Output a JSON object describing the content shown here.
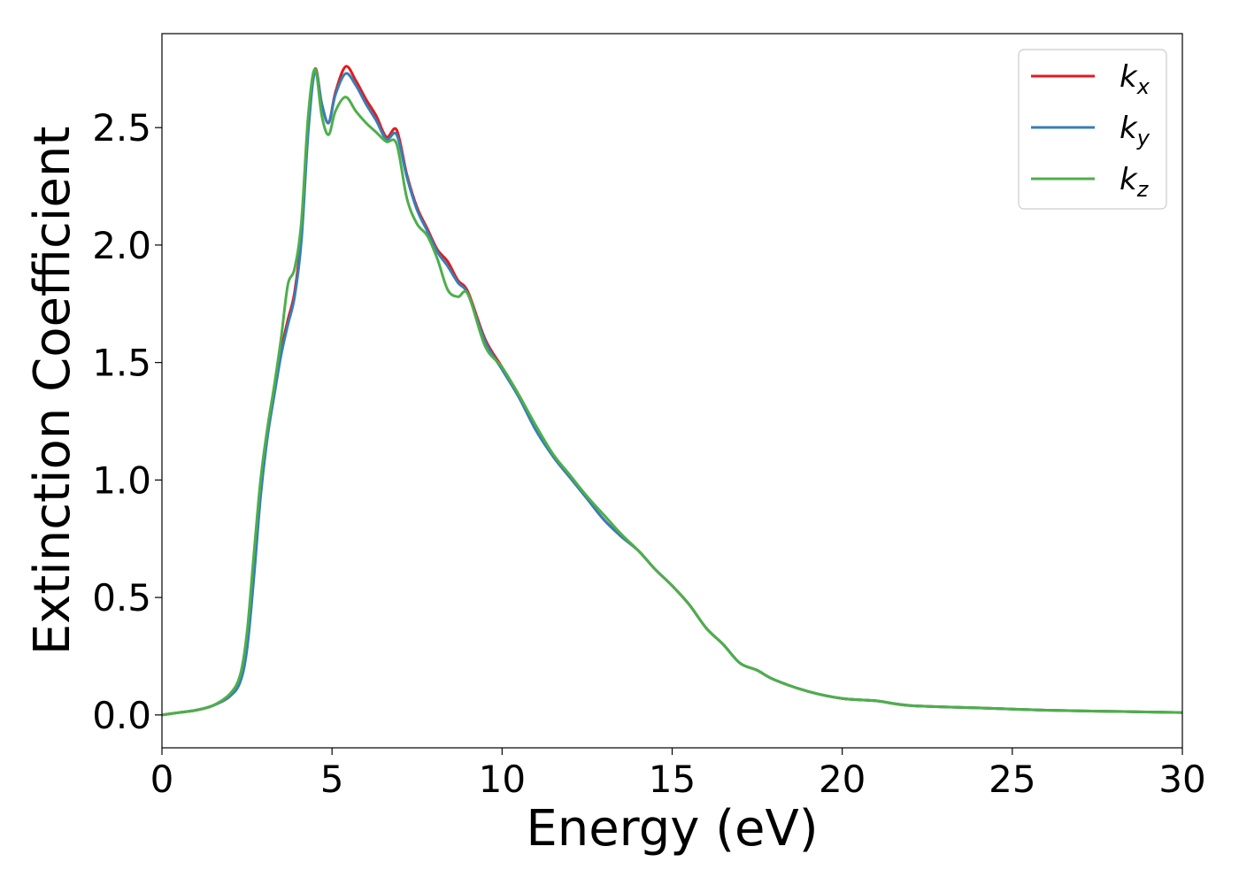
{
  "chart_data": {
    "type": "line",
    "title": "",
    "xlabel": "Energy (eV)",
    "ylabel": "Extinction Coefficient",
    "xlim": [
      0,
      30
    ],
    "ylim": [
      -0.14,
      2.9
    ],
    "xticks": [
      0,
      5,
      10,
      15,
      20,
      25,
      30
    ],
    "xtick_labels": [
      "0",
      "5",
      "10",
      "15",
      "20",
      "25",
      "30"
    ],
    "yticks": [
      0.0,
      0.5,
      1.0,
      1.5,
      2.0,
      2.5
    ],
    "ytick_labels": [
      "0.0",
      "0.5",
      "1.0",
      "1.5",
      "2.0",
      "2.5"
    ],
    "grid": false,
    "legend_position": "top-right",
    "series": [
      {
        "name": "k_x",
        "label_main": "k",
        "label_sub": "x",
        "color": "#e41a1c",
        "x": [
          0,
          0.5,
          1.0,
          1.5,
          2.0,
          2.3,
          2.5,
          2.7,
          2.9,
          3.1,
          3.3,
          3.5,
          3.7,
          3.9,
          4.1,
          4.3,
          4.5,
          4.7,
          4.9,
          5.1,
          5.4,
          5.7,
          6.0,
          6.3,
          6.6,
          6.9,
          7.2,
          7.5,
          7.8,
          8.1,
          8.4,
          8.7,
          9.0,
          9.5,
          10.0,
          10.5,
          11.0,
          11.5,
          12.0,
          12.5,
          13.0,
          13.5,
          14.0,
          14.5,
          15.0,
          15.5,
          16.0,
          16.5,
          17.0,
          17.5,
          18.0,
          19.0,
          20.0,
          21.0,
          22.0,
          24.0,
          26.0,
          28.0,
          30.0
        ],
        "y": [
          0.0,
          0.01,
          0.02,
          0.04,
          0.08,
          0.15,
          0.3,
          0.6,
          0.95,
          1.2,
          1.38,
          1.55,
          1.68,
          1.8,
          2.05,
          2.5,
          2.75,
          2.6,
          2.52,
          2.65,
          2.76,
          2.7,
          2.62,
          2.55,
          2.46,
          2.49,
          2.3,
          2.16,
          2.07,
          1.98,
          1.93,
          1.85,
          1.8,
          1.6,
          1.48,
          1.36,
          1.22,
          1.1,
          1.01,
          0.92,
          0.83,
          0.76,
          0.7,
          0.62,
          0.55,
          0.47,
          0.37,
          0.3,
          0.22,
          0.19,
          0.15,
          0.1,
          0.07,
          0.06,
          0.04,
          0.03,
          0.02,
          0.015,
          0.01
        ]
      },
      {
        "name": "k_y",
        "label_main": "k",
        "label_sub": "y",
        "color": "#377eb8",
        "x": [
          0,
          0.5,
          1.0,
          1.5,
          2.0,
          2.3,
          2.5,
          2.7,
          2.9,
          3.1,
          3.3,
          3.5,
          3.7,
          3.9,
          4.1,
          4.3,
          4.5,
          4.7,
          4.9,
          5.1,
          5.4,
          5.7,
          6.0,
          6.3,
          6.6,
          6.9,
          7.2,
          7.5,
          7.8,
          8.1,
          8.4,
          8.7,
          9.0,
          9.5,
          10.0,
          10.5,
          11.0,
          11.5,
          12.0,
          12.5,
          13.0,
          13.5,
          14.0,
          14.5,
          15.0,
          15.5,
          16.0,
          16.5,
          17.0,
          17.5,
          18.0,
          19.0,
          20.0,
          21.0,
          22.0,
          24.0,
          26.0,
          28.0,
          30.0
        ],
        "y": [
          0.0,
          0.01,
          0.02,
          0.04,
          0.08,
          0.14,
          0.28,
          0.58,
          0.93,
          1.18,
          1.36,
          1.53,
          1.66,
          1.78,
          2.02,
          2.48,
          2.74,
          2.6,
          2.52,
          2.64,
          2.73,
          2.68,
          2.6,
          2.53,
          2.45,
          2.47,
          2.29,
          2.15,
          2.06,
          1.97,
          1.91,
          1.84,
          1.79,
          1.59,
          1.47,
          1.35,
          1.21,
          1.1,
          1.01,
          0.92,
          0.83,
          0.76,
          0.7,
          0.62,
          0.55,
          0.47,
          0.37,
          0.3,
          0.22,
          0.19,
          0.15,
          0.1,
          0.07,
          0.06,
          0.04,
          0.03,
          0.02,
          0.015,
          0.01
        ]
      },
      {
        "name": "k_z",
        "label_main": "k",
        "label_sub": "z",
        "color": "#4daf4a",
        "x": [
          0,
          0.5,
          1.0,
          1.5,
          2.0,
          2.3,
          2.5,
          2.7,
          2.9,
          3.1,
          3.3,
          3.5,
          3.7,
          3.9,
          4.1,
          4.3,
          4.5,
          4.7,
          4.9,
          5.1,
          5.4,
          5.7,
          6.0,
          6.3,
          6.6,
          6.9,
          7.2,
          7.5,
          7.8,
          8.1,
          8.4,
          8.7,
          9.0,
          9.5,
          10.0,
          10.5,
          11.0,
          11.5,
          12.0,
          12.5,
          13.0,
          13.5,
          14.0,
          14.5,
          15.0,
          15.5,
          16.0,
          16.5,
          17.0,
          17.5,
          18.0,
          19.0,
          20.0,
          21.0,
          22.0,
          24.0,
          26.0,
          28.0,
          30.0
        ],
        "y": [
          0.0,
          0.01,
          0.02,
          0.04,
          0.09,
          0.17,
          0.35,
          0.68,
          1.0,
          1.22,
          1.4,
          1.6,
          1.83,
          1.9,
          2.1,
          2.55,
          2.75,
          2.55,
          2.47,
          2.57,
          2.63,
          2.57,
          2.52,
          2.48,
          2.44,
          2.43,
          2.2,
          2.09,
          2.04,
          1.94,
          1.81,
          1.78,
          1.79,
          1.57,
          1.48,
          1.36,
          1.23,
          1.11,
          1.02,
          0.93,
          0.85,
          0.77,
          0.7,
          0.62,
          0.55,
          0.47,
          0.37,
          0.3,
          0.22,
          0.19,
          0.15,
          0.1,
          0.07,
          0.06,
          0.04,
          0.03,
          0.02,
          0.015,
          0.01
        ]
      }
    ]
  }
}
